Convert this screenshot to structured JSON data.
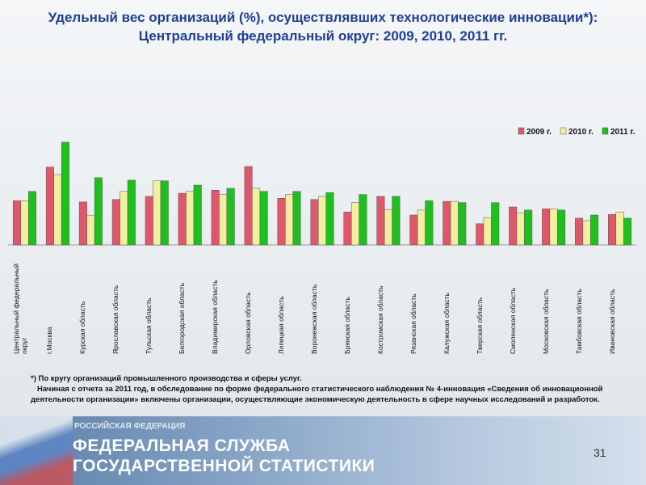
{
  "chart_data": {
    "type": "bar",
    "title": "Удельный вес организаций (%), осуществлявших технологические инновации*): Центральный федеральный округ: 2009, 2010, 2011 гг.",
    "categories": [
      "Центральный федеральный округ",
      "г.Москва",
      "Курская область",
      "Ярославская область",
      "Тульская область",
      "Белгородская область",
      "Владимирская область",
      "Орловская область",
      "Липецкая область",
      "Воронежская область",
      "Брянская область",
      "Костромская область",
      "Рязанская область",
      "Калужская область",
      "Тверская область",
      "Смоленская область",
      "Московская область",
      "Тамбовская область",
      "Ивановская область"
    ],
    "series": [
      {
        "name": "2009 г.",
        "color": "#e0566a",
        "values": [
          7.1,
          12.5,
          6.9,
          7.3,
          7.8,
          8.3,
          8.8,
          12.6,
          7.5,
          7.3,
          5.3,
          7.8,
          4.8,
          7.0,
          3.4,
          6.1,
          5.8,
          4.3,
          4.9
        ]
      },
      {
        "name": "2010 г.",
        "color": "#f3eea0",
        "values": [
          7.1,
          11.3,
          4.7,
          8.6,
          10.3,
          8.6,
          8.1,
          9.1,
          8.1,
          7.8,
          6.8,
          5.7,
          5.6,
          7.0,
          4.4,
          5.1,
          5.8,
          3.9,
          5.3
        ]
      },
      {
        "name": "2011 г.",
        "color": "#1ec01e",
        "values": [
          8.6,
          16.5,
          10.8,
          10.4,
          10.3,
          9.6,
          9.1,
          8.6,
          8.6,
          8.4,
          8.1,
          7.8,
          7.1,
          6.8,
          6.8,
          5.6,
          5.6,
          4.8,
          4.3
        ]
      }
    ],
    "legend": "top-right"
  },
  "footnote": [
    "*) По кругу организаций промышленного производства и сферы услуг.",
    "Начиная с отчета за 2011 год, в обследование по форме федерального статистического наблюдения № 4-инновация «Сведения об инновационной деятельности организации» включены организации, осуществляющие экономическую деятельность в сфере научных исследований и разработок."
  ],
  "footer": {
    "country": "РОССИЙСКАЯ ФЕДЕРАЦИЯ",
    "line1": "ФЕДЕРАЛЬНАЯ СЛУЖБА",
    "line2": "ГОСУДАРСТВЕННОЙ СТАТИСТИКИ",
    "page": "31"
  }
}
